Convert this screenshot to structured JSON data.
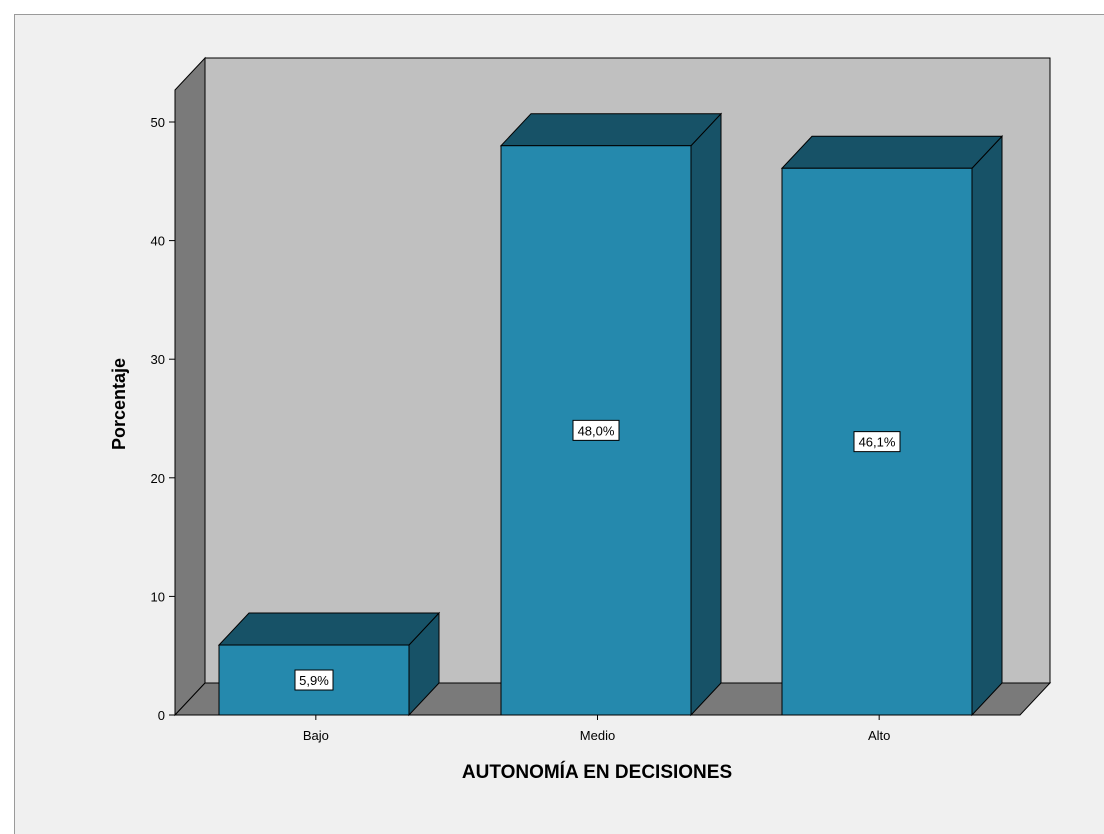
{
  "colors": {
    "page_bg": "#f0f0f0",
    "back_wall": "#c0c0c0",
    "side_wall": "#7a7a7a",
    "floor": "#7a7a7a",
    "bar_front": "#2589ad",
    "bar_top": "#175267",
    "bar_side": "#175267",
    "outline": "#000000",
    "label_bg": "#ffffff"
  },
  "chart_data": {
    "type": "bar",
    "style": "3d",
    "title": "",
    "xlabel": "AUTONOMÍA EN DECISIONES",
    "ylabel": "Porcentaje",
    "ylim": [
      0,
      50
    ],
    "yticks": [
      "0",
      "10",
      "20",
      "30",
      "40",
      "50"
    ],
    "categories": [
      "Bajo",
      "Medio",
      "Alto"
    ],
    "values": [
      5.9,
      48.0,
      46.1
    ],
    "data_labels": [
      "5,9%",
      "48,0%",
      "46,1%"
    ],
    "grid": false,
    "legend": "none"
  }
}
